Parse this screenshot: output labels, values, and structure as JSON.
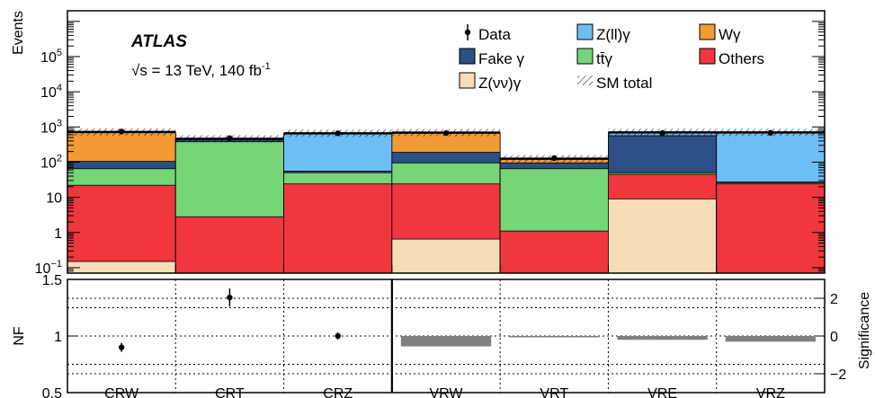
{
  "chart_data": {
    "type": "bar",
    "experiment": "ATLAS",
    "energy_label": "√s = 13 TeV, 140 fb",
    "lumi_superscript": "-1",
    "categories": [
      "CRW",
      "CRT",
      "CRZ",
      "VRW",
      "VRT",
      "VRE",
      "VRZ"
    ],
    "top_panel": {
      "ylabel": "Events",
      "yscale": "log",
      "ylim": [
        0.07,
        2000000
      ],
      "yticks": [
        {
          "v": 0.1,
          "base": "10",
          "exp": "−1"
        },
        {
          "v": 1,
          "base": "1",
          "exp": ""
        },
        {
          "v": 10,
          "base": "10",
          "exp": ""
        },
        {
          "v": 100,
          "base": "10",
          "exp": "2"
        },
        {
          "v": 1000,
          "base": "10",
          "exp": "3"
        },
        {
          "v": 10000,
          "base": "10",
          "exp": "4"
        },
        {
          "v": 100000,
          "base": "10",
          "exp": "5"
        }
      ],
      "stack_order": [
        "Z(νν)γ",
        "Others",
        "tt̄γ",
        "Fake γ",
        "Wγ",
        "Z(ll)γ"
      ],
      "stacked_cumulative": [
        {
          "Z(νν)γ": 0.15,
          "Others": 22,
          "tt̄γ": 65,
          "Fake γ": 105,
          "Wγ": 720,
          "Z(ll)γ": 720
        },
        {
          "Z(νν)γ": 0.07,
          "Others": 2.8,
          "tt̄γ": 380,
          "Fake γ": 460,
          "Wγ": 460,
          "Z(ll)γ": 460
        },
        {
          "Z(νν)γ": 0.07,
          "Others": 24,
          "tt̄γ": 50,
          "Fake γ": 55,
          "Wγ": 55,
          "Z(ll)γ": 660
        },
        {
          "Z(νν)γ": 0.65,
          "Others": 24,
          "tt̄γ": 95,
          "Fake γ": 190,
          "Wγ": 690,
          "Z(ll)γ": 690
        },
        {
          "Z(νν)γ": 0.07,
          "Others": 1.1,
          "tt̄γ": 65,
          "Fake γ": 95,
          "Wγ": 120,
          "Z(ll)γ": 125
        },
        {
          "Z(νν)γ": 9,
          "Others": 45,
          "tt̄γ": 50,
          "Fake γ": 560,
          "Wγ": 560,
          "Z(ll)γ": 700
        },
        {
          "Z(νν)γ": 0.07,
          "Others": 24,
          "tt̄γ": 26,
          "Fake γ": 27,
          "Wγ": 27,
          "Z(ll)γ": 700
        }
      ],
      "sm_total": [
        720,
        460,
        660,
        690,
        125,
        700,
        700
      ],
      "data": [
        740,
        480,
        660,
        670,
        130,
        670,
        680
      ]
    },
    "bottom_panel": {
      "left_ylabel": "NF",
      "left_ylim": [
        0.5,
        1.5
      ],
      "left_yticks": [
        "0.5",
        "1",
        "1.5"
      ],
      "nf_regions": [
        "CRW",
        "CRT",
        "CRZ"
      ],
      "nf_values": [
        0.9,
        1.34,
        1.0
      ],
      "nf_errors": [
        0.04,
        0.08,
        0.03
      ],
      "right_ylabel": "Significance",
      "right_ylim": [
        -3,
        3
      ],
      "right_yticks": [
        "2",
        "0",
        "−2"
      ],
      "significance_regions": [
        "VRW",
        "VRT",
        "VRE",
        "VRZ"
      ],
      "significance_values": [
        -0.55,
        -0.05,
        -0.2,
        -0.3
      ]
    },
    "legend": {
      "placement": "top-right",
      "entries": [
        {
          "label": "Data",
          "type": "marker"
        },
        {
          "label": "Z(ll)γ",
          "type": "fill",
          "color": "#6dbef5"
        },
        {
          "label": "Wγ",
          "type": "fill",
          "color": "#f39a35"
        },
        {
          "label": "Fake γ",
          "type": "fill",
          "color": "#2c4f85"
        },
        {
          "label": "tt̄γ",
          "type": "fill",
          "color": "#75d577"
        },
        {
          "label": "Others",
          "type": "fill",
          "color": "#f0373e"
        },
        {
          "label": "Z(νν)γ",
          "type": "fill",
          "color": "#f6ddb8"
        },
        {
          "label": "SM total",
          "type": "hatch"
        }
      ]
    },
    "colors": {
      "Z(ll)γ": "#6dbef5",
      "Wγ": "#f39a35",
      "Fake γ": "#2c4f85",
      "tt̄γ": "#75d577",
      "Others": "#f0373e",
      "Z(νν)γ": "#f6ddb8",
      "significance_bar": "#808080"
    }
  }
}
